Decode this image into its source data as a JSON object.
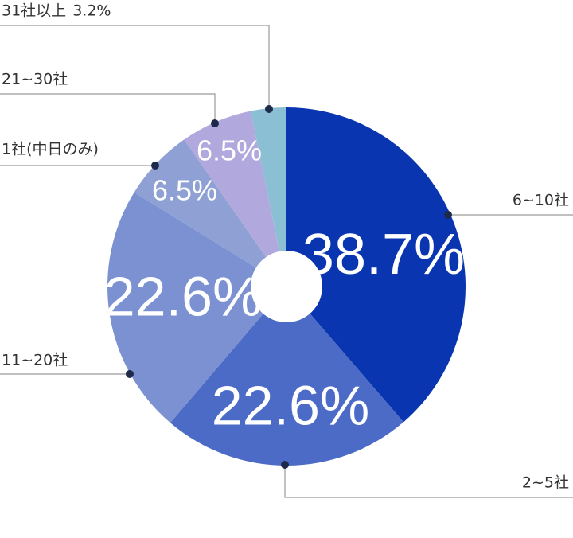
{
  "chart_data": {
    "type": "donut",
    "categories": [
      "6~10社",
      "2~5社",
      "11~20社",
      "1社(中日のみ)",
      "21~30社",
      "31社以上"
    ],
    "values": [
      38.7,
      22.6,
      22.6,
      6.5,
      6.5,
      3.2
    ],
    "value_labels": [
      "38.7%",
      "22.6%",
      "22.6%",
      "6.5%",
      "6.5%",
      "3.2%"
    ],
    "colors": [
      "#0a35b0",
      "#4b6bc6",
      "#7b91d1",
      "#8fa1d4",
      "#b1a9dd",
      "#8bbfd4"
    ]
  }
}
